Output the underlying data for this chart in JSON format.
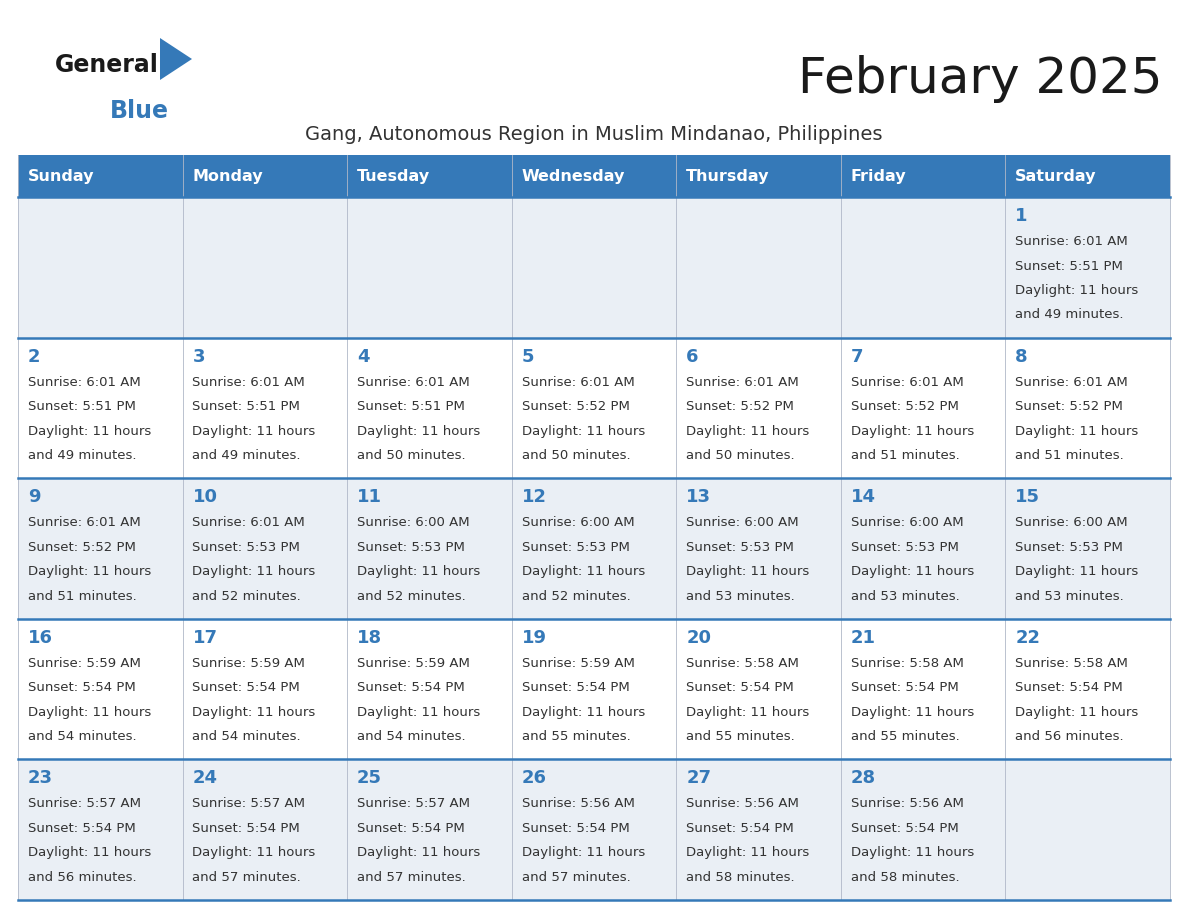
{
  "title": "February 2025",
  "subtitle": "Gang, Autonomous Region in Muslim Mindanao, Philippines",
  "header_bg": "#3579B8",
  "header_text_color": "#FFFFFF",
  "row_bg_colors": [
    "#EAEFF5",
    "#FFFFFF",
    "#EAEFF5",
    "#FFFFFF",
    "#EAEFF5"
  ],
  "day_number_color": "#3579B8",
  "text_color": "#333333",
  "line_color": "#3579B8",
  "days_of_week": [
    "Sunday",
    "Monday",
    "Tuesday",
    "Wednesday",
    "Thursday",
    "Friday",
    "Saturday"
  ],
  "calendar_data": [
    [
      null,
      null,
      null,
      null,
      null,
      null,
      {
        "day": "1",
        "sunrise": "6:01 AM",
        "sunset": "5:51 PM",
        "daylight_h": "11 hours",
        "daylight_m": "and 49 minutes."
      }
    ],
    [
      {
        "day": "2",
        "sunrise": "6:01 AM",
        "sunset": "5:51 PM",
        "daylight_h": "11 hours",
        "daylight_m": "and 49 minutes."
      },
      {
        "day": "3",
        "sunrise": "6:01 AM",
        "sunset": "5:51 PM",
        "daylight_h": "11 hours",
        "daylight_m": "and 49 minutes."
      },
      {
        "day": "4",
        "sunrise": "6:01 AM",
        "sunset": "5:51 PM",
        "daylight_h": "11 hours",
        "daylight_m": "and 50 minutes."
      },
      {
        "day": "5",
        "sunrise": "6:01 AM",
        "sunset": "5:52 PM",
        "daylight_h": "11 hours",
        "daylight_m": "and 50 minutes."
      },
      {
        "day": "6",
        "sunrise": "6:01 AM",
        "sunset": "5:52 PM",
        "daylight_h": "11 hours",
        "daylight_m": "and 50 minutes."
      },
      {
        "day": "7",
        "sunrise": "6:01 AM",
        "sunset": "5:52 PM",
        "daylight_h": "11 hours",
        "daylight_m": "and 51 minutes."
      },
      {
        "day": "8",
        "sunrise": "6:01 AM",
        "sunset": "5:52 PM",
        "daylight_h": "11 hours",
        "daylight_m": "and 51 minutes."
      }
    ],
    [
      {
        "day": "9",
        "sunrise": "6:01 AM",
        "sunset": "5:52 PM",
        "daylight_h": "11 hours",
        "daylight_m": "and 51 minutes."
      },
      {
        "day": "10",
        "sunrise": "6:01 AM",
        "sunset": "5:53 PM",
        "daylight_h": "11 hours",
        "daylight_m": "and 52 minutes."
      },
      {
        "day": "11",
        "sunrise": "6:00 AM",
        "sunset": "5:53 PM",
        "daylight_h": "11 hours",
        "daylight_m": "and 52 minutes."
      },
      {
        "day": "12",
        "sunrise": "6:00 AM",
        "sunset": "5:53 PM",
        "daylight_h": "11 hours",
        "daylight_m": "and 52 minutes."
      },
      {
        "day": "13",
        "sunrise": "6:00 AM",
        "sunset": "5:53 PM",
        "daylight_h": "11 hours",
        "daylight_m": "and 53 minutes."
      },
      {
        "day": "14",
        "sunrise": "6:00 AM",
        "sunset": "5:53 PM",
        "daylight_h": "11 hours",
        "daylight_m": "and 53 minutes."
      },
      {
        "day": "15",
        "sunrise": "6:00 AM",
        "sunset": "5:53 PM",
        "daylight_h": "11 hours",
        "daylight_m": "and 53 minutes."
      }
    ],
    [
      {
        "day": "16",
        "sunrise": "5:59 AM",
        "sunset": "5:54 PM",
        "daylight_h": "11 hours",
        "daylight_m": "and 54 minutes."
      },
      {
        "day": "17",
        "sunrise": "5:59 AM",
        "sunset": "5:54 PM",
        "daylight_h": "11 hours",
        "daylight_m": "and 54 minutes."
      },
      {
        "day": "18",
        "sunrise": "5:59 AM",
        "sunset": "5:54 PM",
        "daylight_h": "11 hours",
        "daylight_m": "and 54 minutes."
      },
      {
        "day": "19",
        "sunrise": "5:59 AM",
        "sunset": "5:54 PM",
        "daylight_h": "11 hours",
        "daylight_m": "and 55 minutes."
      },
      {
        "day": "20",
        "sunrise": "5:58 AM",
        "sunset": "5:54 PM",
        "daylight_h": "11 hours",
        "daylight_m": "and 55 minutes."
      },
      {
        "day": "21",
        "sunrise": "5:58 AM",
        "sunset": "5:54 PM",
        "daylight_h": "11 hours",
        "daylight_m": "and 55 minutes."
      },
      {
        "day": "22",
        "sunrise": "5:58 AM",
        "sunset": "5:54 PM",
        "daylight_h": "11 hours",
        "daylight_m": "and 56 minutes."
      }
    ],
    [
      {
        "day": "23",
        "sunrise": "5:57 AM",
        "sunset": "5:54 PM",
        "daylight_h": "11 hours",
        "daylight_m": "and 56 minutes."
      },
      {
        "day": "24",
        "sunrise": "5:57 AM",
        "sunset": "5:54 PM",
        "daylight_h": "11 hours",
        "daylight_m": "and 57 minutes."
      },
      {
        "day": "25",
        "sunrise": "5:57 AM",
        "sunset": "5:54 PM",
        "daylight_h": "11 hours",
        "daylight_m": "and 57 minutes."
      },
      {
        "day": "26",
        "sunrise": "5:56 AM",
        "sunset": "5:54 PM",
        "daylight_h": "11 hours",
        "daylight_m": "and 57 minutes."
      },
      {
        "day": "27",
        "sunrise": "5:56 AM",
        "sunset": "5:54 PM",
        "daylight_h": "11 hours",
        "daylight_m": "and 58 minutes."
      },
      {
        "day": "28",
        "sunrise": "5:56 AM",
        "sunset": "5:54 PM",
        "daylight_h": "11 hours",
        "daylight_m": "and 58 minutes."
      },
      null
    ]
  ]
}
